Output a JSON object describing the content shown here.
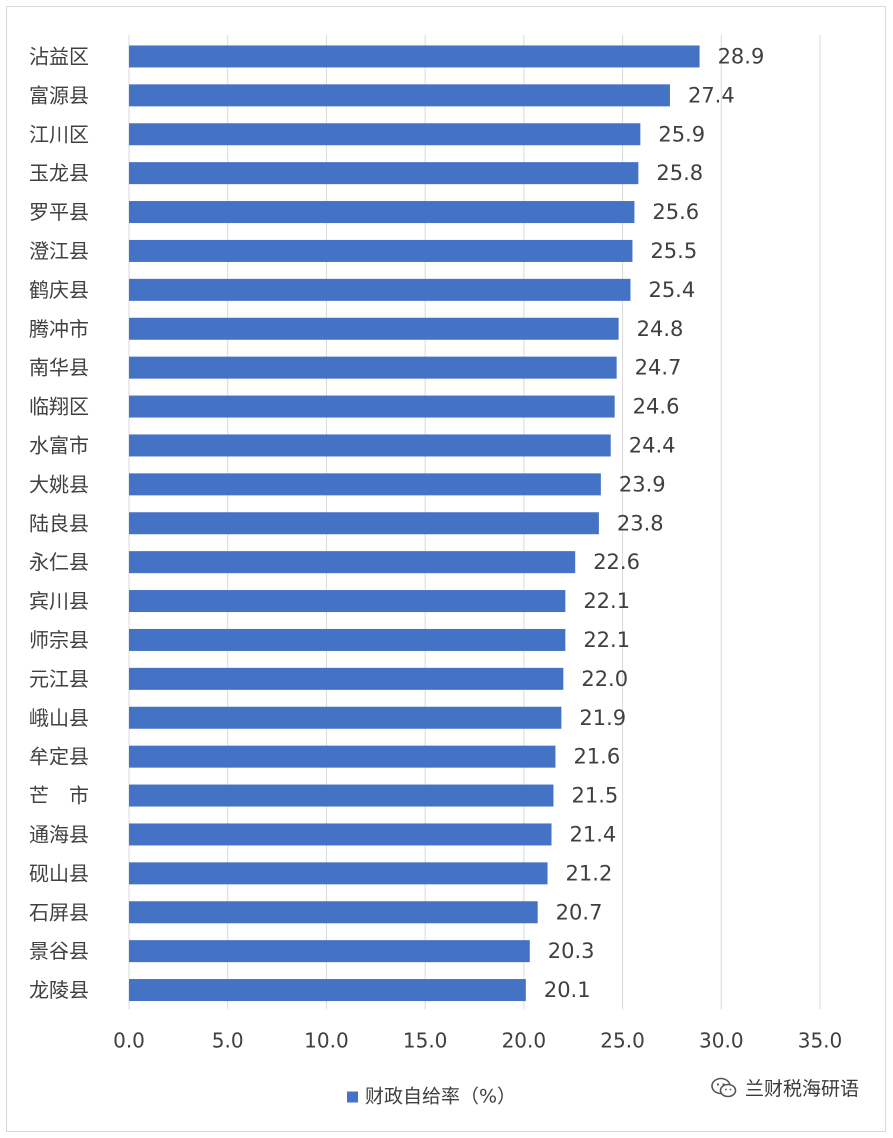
{
  "chart_data": {
    "type": "bar",
    "orientation": "horizontal",
    "categories": [
      "沾益区",
      "富源县",
      "江川区",
      "玉龙县",
      "罗平县",
      "澄江县",
      "鹤庆县",
      "腾冲市",
      "南华县",
      "临翔区",
      "水富市",
      "大姚县",
      "陆良县",
      "永仁县",
      "宾川县",
      "师宗县",
      "元江县",
      "峨山县",
      "牟定县",
      "芒　市",
      "通海县",
      "砚山县",
      "石屏县",
      "景谷县",
      "龙陵县"
    ],
    "series": [
      {
        "name": "财政自给率（%）",
        "values": [
          28.9,
          27.4,
          25.9,
          25.8,
          25.6,
          25.5,
          25.4,
          24.8,
          24.7,
          24.6,
          24.4,
          23.9,
          23.8,
          22.6,
          22.1,
          22.1,
          22.0,
          21.9,
          21.6,
          21.5,
          21.4,
          21.2,
          20.7,
          20.3,
          20.1
        ],
        "color": "#4472c4"
      }
    ],
    "data_labels": [
      "28.9",
      "27.4",
      "25.9",
      "25.8",
      "25.6",
      "25.5",
      "25.4",
      "24.8",
      "24.7",
      "24.6",
      "24.4",
      "23.9",
      "23.8",
      "22.6",
      "22.1",
      "22.1",
      "22.0",
      "21.9",
      "21.6",
      "21.5",
      "21.4",
      "21.2",
      "20.7",
      "20.3",
      "20.1"
    ],
    "xlim": [
      0,
      35
    ],
    "x_ticks": [
      "0.0",
      "5.0",
      "10.0",
      "15.0",
      "20.0",
      "25.0",
      "30.0",
      "35.0"
    ],
    "x_tick_values": [
      0,
      5,
      10,
      15,
      20,
      25,
      30,
      35
    ],
    "grid": "vertical",
    "legend_position": "bottom",
    "title": "",
    "xlabel": "",
    "ylabel": ""
  },
  "watermark": {
    "text": "兰财税海研语",
    "icon": "wechat-icon"
  },
  "colors": {
    "bar": "#4472c4",
    "grid": "#d9d9d9",
    "text": "#404040"
  }
}
